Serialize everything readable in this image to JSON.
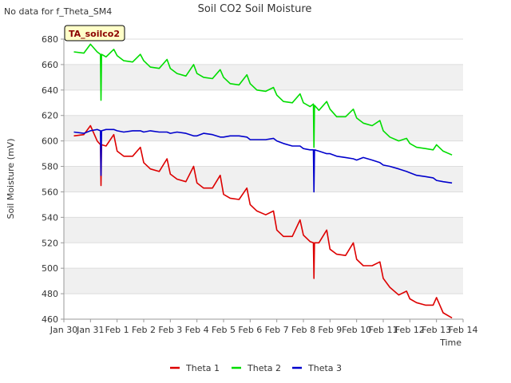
{
  "no_data_note": "No data for f_Theta_SM4",
  "chart_data": {
    "type": "line",
    "title": "Soil CO2 Soil Moisture",
    "xlabel": "Time",
    "ylabel": "Soil Moisture (mV)",
    "site_label": "TA_soilco2",
    "xlim": [
      "Jan 30",
      "Feb 14"
    ],
    "ylim": [
      460,
      680
    ],
    "x_ticks": [
      "Jan 30",
      "Jan 31",
      "Feb 1",
      "Feb 2",
      "Feb 3",
      "Feb 4",
      "Feb 5",
      "Feb 6",
      "Feb 7",
      "Feb 8",
      "Feb 9",
      "Feb 10",
      "Feb 11",
      "Feb 12",
      "Feb 13",
      "Feb 14"
    ],
    "y_ticks": [
      460,
      480,
      500,
      520,
      540,
      560,
      580,
      600,
      620,
      640,
      660,
      680
    ],
    "grid": true,
    "legend_position": "bottom",
    "series": [
      {
        "name": "Theta 1",
        "color": "#dd0000",
        "x": [
          "Jan 30 09:00",
          "Jan 30 18:00",
          "Jan 31 00:00",
          "Jan 31 06:00",
          "Jan 31 09:00",
          "Jan 31 09:30",
          "Jan 31 10:00",
          "Jan 31 14:00",
          "Jan 31 21:00",
          "Feb 1 00:00",
          "Feb 1 06:00",
          "Feb 1 14:00",
          "Feb 1 21:00",
          "Feb 2 00:00",
          "Feb 2 06:00",
          "Feb 2 14:00",
          "Feb 2 21:00",
          "Feb 3 00:00",
          "Feb 3 06:00",
          "Feb 3 14:00",
          "Feb 3 21:00",
          "Feb 4 00:00",
          "Feb 4 06:00",
          "Feb 4 14:00",
          "Feb 4 21:00",
          "Feb 5 00:00",
          "Feb 5 06:00",
          "Feb 5 14:00",
          "Feb 5 21:00",
          "Feb 6 00:00",
          "Feb 6 06:00",
          "Feb 6 14:00",
          "Feb 6 21:00",
          "Feb 7 00:00",
          "Feb 7 06:00",
          "Feb 7 14:00",
          "Feb 7 21:00",
          "Feb 8 00:00",
          "Feb 8 06:00",
          "Feb 8 09:00",
          "Feb 8 09:30",
          "Feb 8 10:00",
          "Feb 8 14:00",
          "Feb 8 21:00",
          "Feb 9 00:00",
          "Feb 9 06:00",
          "Feb 9 14:00",
          "Feb 9 21:00",
          "Feb 10 00:00",
          "Feb 10 06:00",
          "Feb 10 14:00",
          "Feb 10 21:00",
          "Feb 11 00:00",
          "Feb 11 06:00",
          "Feb 11 14:00",
          "Feb 11 21:00",
          "Feb 12 00:00",
          "Feb 12 06:00",
          "Feb 12 14:00",
          "Feb 12 21:00",
          "Feb 13 00:00",
          "Feb 13 06:00",
          "Feb 13 14:00"
        ],
        "values": [
          604,
          605,
          612,
          600,
          597,
          565,
          597,
          596,
          605,
          592,
          588,
          588,
          595,
          583,
          578,
          576,
          586,
          574,
          570,
          568,
          580,
          567,
          563,
          563,
          573,
          558,
          555,
          554,
          563,
          550,
          545,
          542,
          545,
          530,
          525,
          525,
          538,
          526,
          521,
          520,
          492,
          520,
          520,
          530,
          515,
          511,
          510,
          520,
          507,
          502,
          502,
          505,
          492,
          485,
          479,
          482,
          476,
          473,
          471,
          471,
          477,
          465,
          461
        ]
      },
      {
        "name": "Theta 2",
        "color": "#00dd00",
        "x": [
          "Jan 30 09:00",
          "Jan 30 18:00",
          "Jan 31 00:00",
          "Jan 31 06:00",
          "Jan 31 09:00",
          "Jan 31 09:30",
          "Jan 31 10:00",
          "Jan 31 14:00",
          "Jan 31 21:00",
          "Feb 1 00:00",
          "Feb 1 06:00",
          "Feb 1 14:00",
          "Feb 1 21:00",
          "Feb 2 00:00",
          "Feb 2 06:00",
          "Feb 2 14:00",
          "Feb 2 21:00",
          "Feb 3 00:00",
          "Feb 3 06:00",
          "Feb 3 14:00",
          "Feb 3 21:00",
          "Feb 4 00:00",
          "Feb 4 06:00",
          "Feb 4 14:00",
          "Feb 4 21:00",
          "Feb 5 00:00",
          "Feb 5 06:00",
          "Feb 5 14:00",
          "Feb 5 21:00",
          "Feb 6 00:00",
          "Feb 6 06:00",
          "Feb 6 14:00",
          "Feb 6 21:00",
          "Feb 7 00:00",
          "Feb 7 06:00",
          "Feb 7 14:00",
          "Feb 7 21:00",
          "Feb 8 00:00",
          "Feb 8 06:00",
          "Feb 8 09:00",
          "Feb 8 09:30",
          "Feb 8 10:00",
          "Feb 8 14:00",
          "Feb 8 21:00",
          "Feb 9 00:00",
          "Feb 9 06:00",
          "Feb 9 14:00",
          "Feb 9 21:00",
          "Feb 10 00:00",
          "Feb 10 06:00",
          "Feb 10 14:00",
          "Feb 10 21:00",
          "Feb 11 00:00",
          "Feb 11 06:00",
          "Feb 11 14:00",
          "Feb 11 21:00",
          "Feb 12 00:00",
          "Feb 12 06:00",
          "Feb 12 14:00",
          "Feb 12 21:00",
          "Feb 13 00:00",
          "Feb 13 06:00",
          "Feb 13 14:00"
        ],
        "values": [
          670,
          669,
          676,
          670,
          668,
          632,
          668,
          666,
          672,
          667,
          663,
          662,
          668,
          663,
          658,
          657,
          664,
          657,
          653,
          651,
          660,
          653,
          650,
          649,
          656,
          650,
          645,
          644,
          652,
          645,
          640,
          639,
          642,
          636,
          631,
          630,
          637,
          630,
          627,
          629,
          595,
          628,
          624,
          631,
          625,
          619,
          619,
          625,
          618,
          614,
          612,
          616,
          608,
          603,
          600,
          602,
          598,
          595,
          594,
          593,
          597,
          592,
          589
        ]
      },
      {
        "name": "Theta 3",
        "color": "#0000cc",
        "x": [
          "Jan 30 09:00",
          "Jan 30 18:00",
          "Jan 31 00:00",
          "Jan 31 06:00",
          "Jan 31 09:00",
          "Jan 31 09:30",
          "Jan 31 10:00",
          "Jan 31 14:00",
          "Jan 31 21:00",
          "Feb 1 00:00",
          "Feb 1 06:00",
          "Feb 1 14:00",
          "Feb 1 21:00",
          "Feb 2 00:00",
          "Feb 2 06:00",
          "Feb 2 14:00",
          "Feb 2 21:00",
          "Feb 3 00:00",
          "Feb 3 06:00",
          "Feb 3 14:00",
          "Feb 3 21:00",
          "Feb 4 00:00",
          "Feb 4 06:00",
          "Feb 4 14:00",
          "Feb 4 21:00",
          "Feb 5 00:00",
          "Feb 5 06:00",
          "Feb 5 14:00",
          "Feb 5 21:00",
          "Feb 6 00:00",
          "Feb 6 06:00",
          "Feb 6 14:00",
          "Feb 6 21:00",
          "Feb 7 00:00",
          "Feb 7 06:00",
          "Feb 7 14:00",
          "Feb 7 21:00",
          "Feb 8 00:00",
          "Feb 8 06:00",
          "Feb 8 09:00",
          "Feb 8 09:30",
          "Feb 8 10:00",
          "Feb 8 14:00",
          "Feb 8 21:00",
          "Feb 9 00:00",
          "Feb 9 06:00",
          "Feb 9 14:00",
          "Feb 9 21:00",
          "Feb 10 00:00",
          "Feb 10 06:00",
          "Feb 10 14:00",
          "Feb 10 21:00",
          "Feb 11 00:00",
          "Feb 11 06:00",
          "Feb 11 14:00",
          "Feb 11 21:00",
          "Feb 12 00:00",
          "Feb 12 06:00",
          "Feb 12 14:00",
          "Feb 12 21:00",
          "Feb 13 00:00",
          "Feb 13 06:00",
          "Feb 13 14:00"
        ],
        "values": [
          607,
          606,
          608,
          609,
          608,
          573,
          608,
          609,
          609,
          608,
          607,
          608,
          608,
          607,
          608,
          607,
          607,
          606,
          607,
          606,
          604,
          604,
          606,
          605,
          603,
          603,
          604,
          604,
          603,
          601,
          601,
          601,
          602,
          600,
          598,
          596,
          596,
          594,
          593,
          593,
          560,
          593,
          592,
          590,
          590,
          588,
          587,
          586,
          585,
          587,
          585,
          583,
          581,
          580,
          578,
          576,
          575,
          573,
          572,
          571,
          569,
          568,
          567
        ]
      }
    ]
  }
}
